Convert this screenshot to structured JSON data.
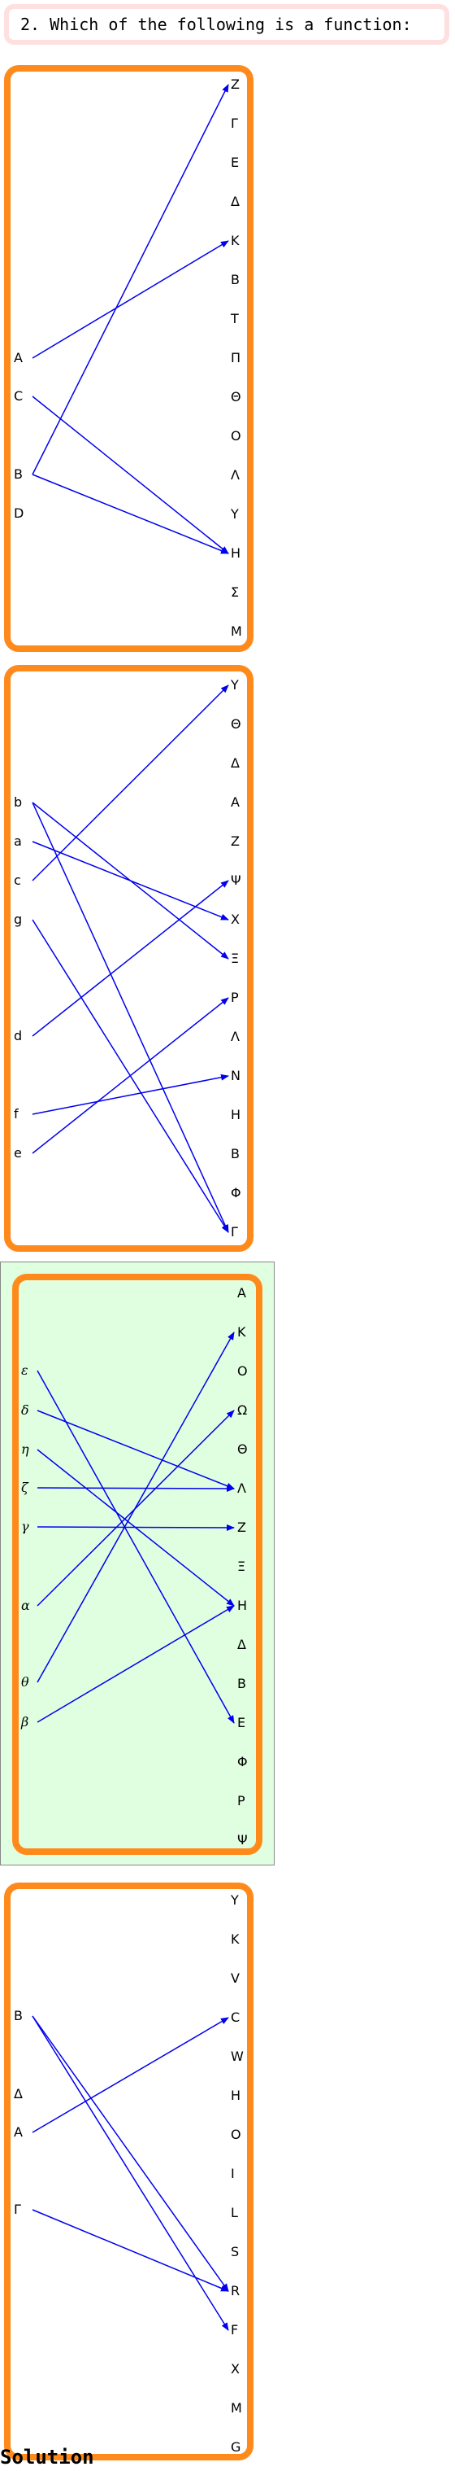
{
  "question": "2. Which of the following is a function:",
  "solution_heading": "Solution",
  "colors": {
    "panel_border": "#ff8a1c",
    "arrow": "#0000ee",
    "highlight_bg": "#e0ffe0",
    "question_border": "#ffe0e0"
  },
  "options": [
    {
      "id": "option-1",
      "highlighted": false,
      "domain": [
        "A",
        "C",
        "B",
        "D"
      ],
      "codomain": [
        "Z",
        "Γ",
        "E",
        "Δ",
        "K",
        "B",
        "T",
        "Π",
        "Θ",
        "O",
        "Λ",
        "Y",
        "H",
        "Σ",
        "M"
      ],
      "mapping": [
        [
          "A",
          "K"
        ],
        [
          "C",
          "H"
        ],
        [
          "B",
          "Z"
        ],
        [
          "B",
          "H"
        ]
      ]
    },
    {
      "id": "option-2",
      "highlighted": false,
      "domain": [
        "b",
        "a",
        "c",
        "g",
        "d",
        "f",
        "e"
      ],
      "codomain": [
        "Y",
        "Θ",
        "Δ",
        "A",
        "Z",
        "Ψ",
        "X",
        "Ξ",
        "P",
        "Λ",
        "N",
        "H",
        "B",
        "Φ",
        "Γ"
      ],
      "mapping": [
        [
          "b",
          "Ξ"
        ],
        [
          "b",
          "Γ"
        ],
        [
          "a",
          "X"
        ],
        [
          "c",
          "Y"
        ],
        [
          "g",
          "Γ"
        ],
        [
          "d",
          "Ψ"
        ],
        [
          "f",
          "N"
        ],
        [
          "e",
          "P"
        ]
      ]
    },
    {
      "id": "option-3",
      "highlighted": true,
      "domain": [
        "ε",
        "δ",
        "η",
        "ζ",
        "γ",
        "α",
        "θ",
        "β"
      ],
      "codomain": [
        "A",
        "K",
        "O",
        "Ω",
        "Θ",
        "Λ",
        "Z",
        "Ξ",
        "H",
        "Δ",
        "B",
        "E",
        "Φ",
        "P",
        "Ψ"
      ],
      "mapping": [
        [
          "ε",
          "E"
        ],
        [
          "δ",
          "Λ"
        ],
        [
          "η",
          "H"
        ],
        [
          "ζ",
          "Λ"
        ],
        [
          "γ",
          "Z"
        ],
        [
          "α",
          "Ω"
        ],
        [
          "θ",
          "K"
        ],
        [
          "β",
          "H"
        ]
      ]
    },
    {
      "id": "option-4",
      "highlighted": false,
      "domain": [
        "B",
        "Δ",
        "A",
        "Γ"
      ],
      "codomain": [
        "Y",
        "K",
        "V",
        "C",
        "W",
        "H",
        "O",
        "I",
        "L",
        "S",
        "R",
        "F",
        "X",
        "M",
        "G"
      ],
      "mapping": [
        [
          "B",
          "R"
        ],
        [
          "B",
          "F"
        ],
        [
          "A",
          "C"
        ],
        [
          "Γ",
          "R"
        ]
      ]
    }
  ]
}
